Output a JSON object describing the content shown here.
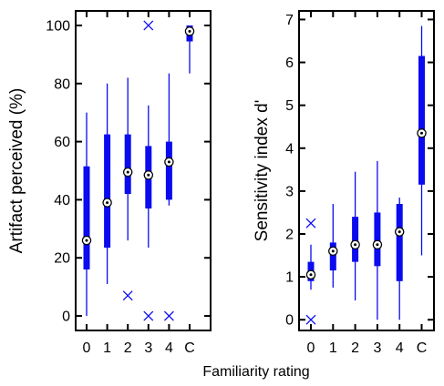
{
  "figure": {
    "shared_xlabel": "Familiarity rating"
  },
  "colors": {
    "box": "#0b0bf0",
    "axis": "#000000",
    "median_fill": "#ffffff"
  },
  "chart_data": [
    {
      "type": "boxplot",
      "ylabel": "Artifact perceived (%)",
      "categories": [
        "0",
        "1",
        "2",
        "3",
        "4",
        "C"
      ],
      "ylim": [
        -5,
        105
      ],
      "yticks": [
        0,
        20,
        40,
        60,
        80,
        100
      ],
      "ytick_labels": [
        "0",
        "20",
        "40",
        "60",
        "80",
        "100"
      ],
      "boxes": [
        {
          "category": "0",
          "whisker_low": 0,
          "q1": 16,
          "median": 26,
          "q3": 51.5,
          "whisker_high": 70
        },
        {
          "category": "1",
          "whisker_low": 11,
          "q1": 23.5,
          "median": 39,
          "q3": 62.5,
          "whisker_high": 80
        },
        {
          "category": "2",
          "whisker_low": 26,
          "q1": 42,
          "median": 49.5,
          "q3": 62.5,
          "whisker_high": 82
        },
        {
          "category": "3",
          "whisker_low": 23.5,
          "q1": 37,
          "median": 48.5,
          "q3": 58.5,
          "whisker_high": 72.5
        },
        {
          "category": "4",
          "whisker_low": 38,
          "q1": 40,
          "median": 53,
          "q3": 60,
          "whisker_high": 83.5
        },
        {
          "category": "C",
          "whisker_low": 83.5,
          "q1": 94.5,
          "median": 98,
          "q3": 100,
          "whisker_high": 100
        }
      ],
      "outliers": [
        {
          "category": "2",
          "value": 7
        },
        {
          "category": "3",
          "value": 100
        },
        {
          "category": "3",
          "value": 0
        },
        {
          "category": "4",
          "value": 0
        }
      ]
    },
    {
      "type": "boxplot",
      "ylabel": "Sensitivity index d'",
      "categories": [
        "0",
        "1",
        "2",
        "3",
        "4",
        "C"
      ],
      "ylim": [
        -0.25,
        7.2
      ],
      "yticks": [
        0,
        1,
        2,
        3,
        4,
        5,
        6,
        7
      ],
      "ytick_labels": [
        "0",
        "1",
        "2",
        "3",
        "4",
        "5",
        "6",
        "7"
      ],
      "boxes": [
        {
          "category": "0",
          "whisker_low": 0.7,
          "q1": 0.9,
          "median": 1.05,
          "q3": 1.35,
          "whisker_high": 1.75
        },
        {
          "category": "1",
          "whisker_low": 0.75,
          "q1": 1.15,
          "median": 1.6,
          "q3": 1.8,
          "whisker_high": 2.7
        },
        {
          "category": "2",
          "whisker_low": 0.45,
          "q1": 1.35,
          "median": 1.75,
          "q3": 2.4,
          "whisker_high": 3.45
        },
        {
          "category": "3",
          "whisker_low": 0.0,
          "q1": 1.25,
          "median": 1.75,
          "q3": 2.5,
          "whisker_high": 3.7
        },
        {
          "category": "4",
          "whisker_low": 0.0,
          "q1": 0.9,
          "median": 2.05,
          "q3": 2.7,
          "whisker_high": 2.85
        },
        {
          "category": "C",
          "whisker_low": 1.5,
          "q1": 3.15,
          "median": 4.35,
          "q3": 6.15,
          "whisker_high": 6.85
        }
      ],
      "outliers": [
        {
          "category": "0",
          "value": 2.25
        },
        {
          "category": "0",
          "value": 0.0
        }
      ]
    }
  ]
}
